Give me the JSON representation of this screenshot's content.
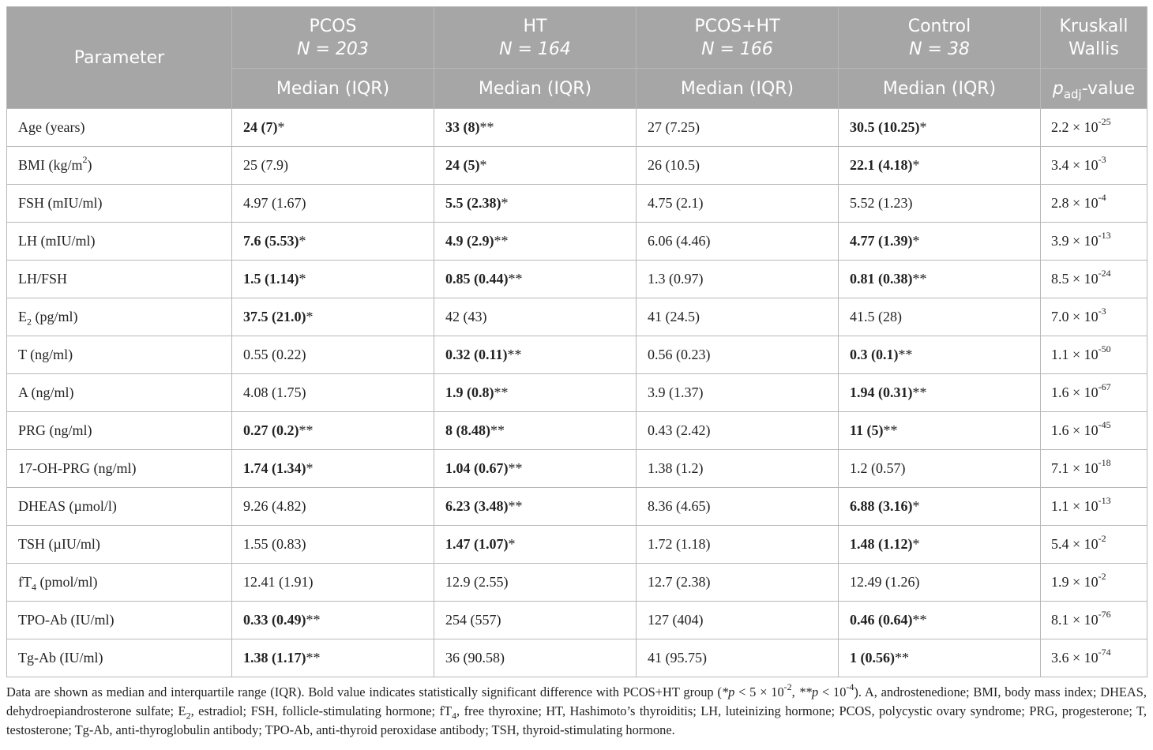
{
  "header": {
    "param_label": "Parameter",
    "groups": [
      {
        "name": "PCOS",
        "n": "N = 203",
        "stat": "Median (IQR)"
      },
      {
        "name": "HT",
        "n": "N = 164",
        "stat": "Median (IQR)"
      },
      {
        "name": "PCOS+HT",
        "n": "N = 166",
        "stat": "Median (IQR)"
      },
      {
        "name": "Control",
        "n": "N = 38",
        "stat": "Median (IQR)"
      }
    ],
    "kw_line1": "Kruskall",
    "kw_line2": "Wallis",
    "pval_p": "p",
    "pval_sub": "adj",
    "pval_rest": "-value"
  },
  "rows": [
    {
      "param": "Age (years)",
      "cells": [
        {
          "v": "24 (7)",
          "s": "*",
          "b": true
        },
        {
          "v": "33 (8)",
          "s": "**",
          "b": true
        },
        {
          "v": "27 (7.25)",
          "s": "",
          "b": false
        },
        {
          "v": "30.5 (10.25)",
          "s": "*",
          "b": true
        }
      ],
      "p": "2.2 × 10",
      "exp": "-25"
    },
    {
      "param": "BMI (kg/m",
      "param_sup": "2",
      "param_after": ")",
      "cells": [
        {
          "v": "25 (7.9)",
          "s": "",
          "b": false
        },
        {
          "v": "24 (5)",
          "s": "*",
          "b": true
        },
        {
          "v": "26 (10.5)",
          "s": "",
          "b": false
        },
        {
          "v": "22.1 (4.18)",
          "s": "*",
          "b": true
        }
      ],
      "p": "3.4 × 10",
      "exp": "-3"
    },
    {
      "param": "FSH (mIU/ml)",
      "cells": [
        {
          "v": "4.97 (1.67)",
          "s": "",
          "b": false
        },
        {
          "v": "5.5 (2.38)",
          "s": "*",
          "b": true
        },
        {
          "v": "4.75 (2.1)",
          "s": "",
          "b": false
        },
        {
          "v": "5.52 (1.23)",
          "s": "",
          "b": false
        }
      ],
      "p": "2.8 × 10",
      "exp": "-4"
    },
    {
      "param": "LH (mIU/ml)",
      "cells": [
        {
          "v": "7.6 (5.53)",
          "s": "*",
          "b": true
        },
        {
          "v": "4.9 (2.9)",
          "s": "**",
          "b": true
        },
        {
          "v": "6.06 (4.46)",
          "s": "",
          "b": false
        },
        {
          "v": "4.77 (1.39)",
          "s": "*",
          "b": true
        }
      ],
      "p": "3.9 × 10",
      "exp": "-13"
    },
    {
      "param": "LH/FSH",
      "cells": [
        {
          "v": "1.5 (1.14)",
          "s": "*",
          "b": true
        },
        {
          "v": "0.85 (0.44)",
          "s": "**",
          "b": true
        },
        {
          "v": "1.3 (0.97)",
          "s": "",
          "b": false
        },
        {
          "v": "0.81 (0.38)",
          "s": "**",
          "b": true
        }
      ],
      "p": "8.5 × 10",
      "exp": "-24"
    },
    {
      "param": "E",
      "param_sub": "2",
      "param_after": " (pg/ml)",
      "cells": [
        {
          "v": "37.5 (21.0)",
          "s": "*",
          "b": true
        },
        {
          "v": "42 (43)",
          "s": "",
          "b": false
        },
        {
          "v": "41 (24.5)",
          "s": "",
          "b": false
        },
        {
          "v": "41.5 (28)",
          "s": "",
          "b": false
        }
      ],
      "p": "7.0 × 10",
      "exp": "-3"
    },
    {
      "param": "T (ng/ml)",
      "cells": [
        {
          "v": "0.55 (0.22)",
          "s": "",
          "b": false
        },
        {
          "v": "0.32 (0.11)",
          "s": "**",
          "b": true
        },
        {
          "v": "0.56 (0.23)",
          "s": "",
          "b": false
        },
        {
          "v": "0.3 (0.1)",
          "s": "**",
          "b": true
        }
      ],
      "p": "1.1 × 10",
      "exp": "-50"
    },
    {
      "param": "A (ng/ml)",
      "cells": [
        {
          "v": "4.08 (1.75)",
          "s": "",
          "b": false
        },
        {
          "v": "1.9 (0.8)",
          "s": "**",
          "b": true
        },
        {
          "v": "3.9 (1.37)",
          "s": "",
          "b": false
        },
        {
          "v": "1.94 (0.31)",
          "s": "**",
          "b": true
        }
      ],
      "p": "1.6 × 10",
      "exp": "-67"
    },
    {
      "param": "PRG (ng/ml)",
      "cells": [
        {
          "v": "0.27 (0.2)",
          "s": "**",
          "b": true
        },
        {
          "v": "8 (8.48)",
          "s": "**",
          "b": true
        },
        {
          "v": "0.43 (2.42)",
          "s": "",
          "b": false
        },
        {
          "v": "11 (5)",
          "s": "**",
          "b": true
        }
      ],
      "p": "1.6 × 10",
      "exp": "-45"
    },
    {
      "param": "17-OH-PRG (ng/ml)",
      "cells": [
        {
          "v": "1.74 (1.34)",
          "s": "*",
          "b": true
        },
        {
          "v": "1.04 (0.67)",
          "s": "**",
          "b": true
        },
        {
          "v": "1.38 (1.2)",
          "s": "",
          "b": false
        },
        {
          "v": "1.2 (0.57)",
          "s": "",
          "b": false
        }
      ],
      "p": "7.1 × 10",
      "exp": "-18"
    },
    {
      "param": "DHEAS (µmol/l)",
      "cells": [
        {
          "v": "9.26 (4.82)",
          "s": "",
          "b": false
        },
        {
          "v": "6.23 (3.48)",
          "s": "**",
          "b": true
        },
        {
          "v": "8.36 (4.65)",
          "s": "",
          "b": false
        },
        {
          "v": "6.88 (3.16)",
          "s": "*",
          "b": true
        }
      ],
      "p": "1.1 × 10",
      "exp": "-13"
    },
    {
      "param": "TSH (µIU/ml)",
      "cells": [
        {
          "v": "1.55 (0.83)",
          "s": "",
          "b": false
        },
        {
          "v": "1.47 (1.07)",
          "s": "*",
          "b": true
        },
        {
          "v": "1.72 (1.18)",
          "s": "",
          "b": false
        },
        {
          "v": "1.48 (1.12)",
          "s": "*",
          "b": true
        }
      ],
      "p": "5.4 × 10",
      "exp": "-2"
    },
    {
      "param": "fT",
      "param_sub": "4",
      "param_after": " (pmol/ml)",
      "cells": [
        {
          "v": "12.41 (1.91)",
          "s": "",
          "b": false
        },
        {
          "v": "12.9 (2.55)",
          "s": "",
          "b": false
        },
        {
          "v": "12.7 (2.38)",
          "s": "",
          "b": false
        },
        {
          "v": "12.49 (1.26)",
          "s": "",
          "b": false
        }
      ],
      "p": "1.9 × 10",
      "exp": "-2"
    },
    {
      "param": "TPO-Ab (IU/ml)",
      "cells": [
        {
          "v": "0.33 (0.49)",
          "s": "**",
          "b": true
        },
        {
          "v": "254 (557)",
          "s": "",
          "b": false
        },
        {
          "v": "127 (404)",
          "s": "",
          "b": false
        },
        {
          "v": "0.46 (0.64)",
          "s": "**",
          "b": true
        }
      ],
      "p": "8.1 × 10",
      "exp": "-76"
    },
    {
      "param": "Tg-Ab (IU/ml)",
      "cells": [
        {
          "v": "1.38 (1.17)",
          "s": "**",
          "b": true
        },
        {
          "v": "36 (90.58)",
          "s": "",
          "b": false
        },
        {
          "v": "41 (95.75)",
          "s": "",
          "b": false
        },
        {
          "v": "1 (0.56)",
          "s": "**",
          "b": true
        }
      ],
      "p": "3.6 × 10",
      "exp": "-74"
    }
  ],
  "footnote": {
    "line1a": "Data are shown as median and interquartile range (IQR). Bold value indicates statistically significant difference with PCOS+HT group (",
    "fn_star1": "*",
    "fn_p1": "p",
    "fn_lt1": " < 5 × 10",
    "fn_exp1": "-2",
    "fn_sep": ", ",
    "fn_star2": "**",
    "fn_p2": "p",
    "fn_lt2": " < 10",
    "fn_exp2": "-4",
    "line1b": "). A, androstenedione; BMI, body mass index; DHEAS, dehydroepiandrosterone sulfate; E",
    "e2_sub": "2",
    "line1c": ", estradiol; FSH, follicle-stimulating hormone; fT",
    "ft4_sub": "4",
    "line1d": ", free thyroxine; HT, Hashimoto’s thyroiditis; LH, luteinizing hormone; PCOS, polycystic ovary syndrome; PRG, progesterone; T, testosterone; Tg-Ab, anti-thyroglobulin antibody; TPO-Ab, anti-thyroid peroxidase antibody; TSH, thyroid-stimulating hormone."
  }
}
